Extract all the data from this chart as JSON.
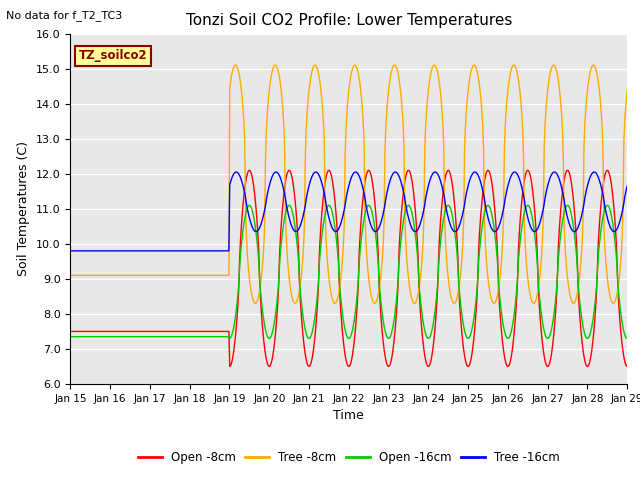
{
  "title": "Tonzi Soil CO2 Profile: Lower Temperatures",
  "no_data_text": "No data for f_T2_TC3",
  "legend_box_text": "TZ_soilco2",
  "xlabel": "Time",
  "ylabel": "Soil Temperatures (C)",
  "ylim": [
    6.0,
    16.0
  ],
  "yticks": [
    6.0,
    7.0,
    8.0,
    9.0,
    10.0,
    11.0,
    12.0,
    13.0,
    14.0,
    15.0,
    16.0
  ],
  "xtick_labels": [
    "Jan 15",
    "Jan 16",
    "Jan 17",
    "Jan 18",
    "Jan 19",
    "Jan 20",
    "Jan 21",
    "Jan 22",
    "Jan 23",
    "Jan 24",
    "Jan 25",
    "Jan 26",
    "Jan 27",
    "Jan 28",
    "Jan 29"
  ],
  "colors": {
    "open_8cm": "#ff0000",
    "tree_8cm": "#ffaa00",
    "open_16cm": "#00cc00",
    "tree_16cm": "#0000ff"
  },
  "legend_labels": [
    "Open -8cm",
    "Tree -8cm",
    "Open -16cm",
    "Tree -16cm"
  ],
  "plot_bg": "#e8e8e8",
  "fig_bg": "#ffffff",
  "linewidth": 1.0,
  "flat_open_8": 7.5,
  "flat_tree_8": 9.1,
  "flat_open_16": 7.35,
  "flat_tree_16": 9.8,
  "transition_day": 4.0
}
